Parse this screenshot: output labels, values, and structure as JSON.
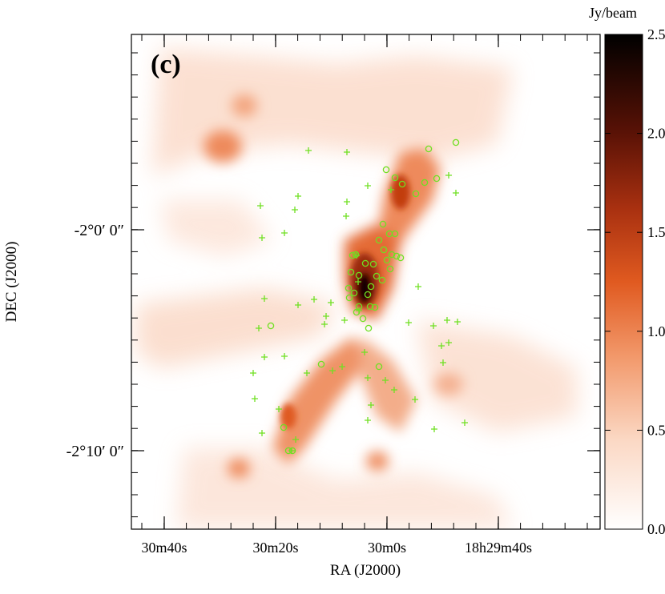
{
  "chart_data": {
    "type": "heatmap",
    "panel_label": "(c)",
    "xlabel": "RA (J2000)",
    "ylabel": "DEC (J2000)",
    "x_ticks": [
      "30m40s",
      "30m20s",
      "30m0s",
      "18h29m40s"
    ],
    "y_ticks": [
      "-2°0′ 0″",
      "-2°10′ 0″"
    ],
    "colorbar": {
      "label": "Jy/beam",
      "min": 0.0,
      "max": 2.5,
      "ticks": [
        "0.0",
        "0.5",
        "1.0",
        "1.5",
        "2.0",
        "2.5"
      ],
      "tick_values": [
        0.0,
        0.5,
        1.0,
        1.5,
        2.0,
        2.5
      ]
    },
    "colors": {
      "low": "#ffffff",
      "mid": "#e8571a",
      "high": "#000000",
      "markers": "#6fe022",
      "frame": "#000000"
    },
    "markers": {
      "plus_description": "green plus-sign sources",
      "circle_description": "green open-circle sources"
    }
  }
}
